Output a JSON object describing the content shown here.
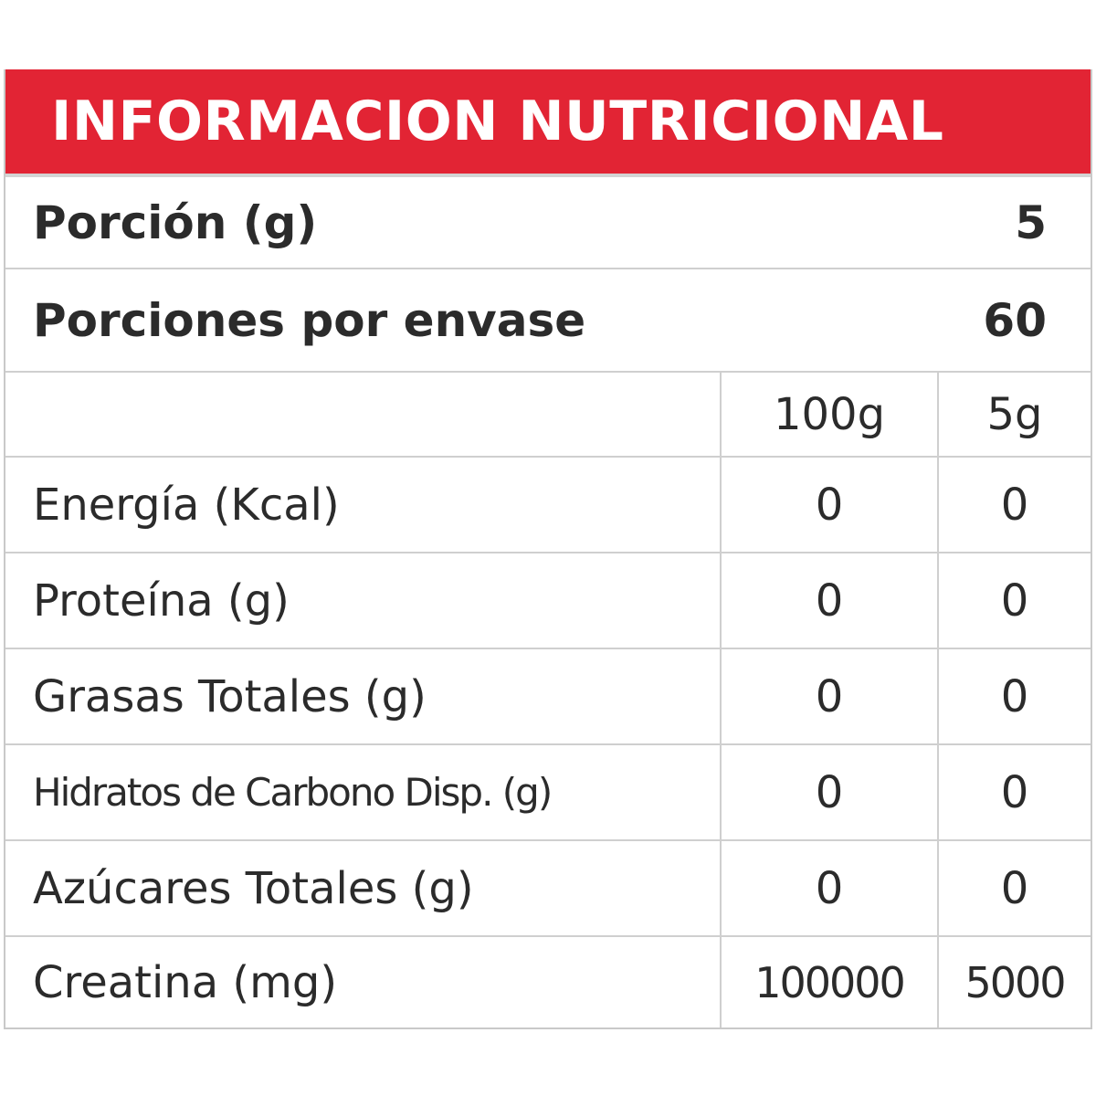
{
  "title": "INFORMACION NUTRICIONAL",
  "serving": {
    "label": "Porción (g)",
    "value": "5"
  },
  "servings_per_container": {
    "label": "Porciones por envase",
    "value": "60"
  },
  "columns": {
    "per_100": "100g",
    "per_serving": "5g"
  },
  "nutrients": [
    {
      "name": "Energía (Kcal)",
      "per_100": "0",
      "per_serving": "0"
    },
    {
      "name": "Proteína (g)",
      "per_100": "0",
      "per_serving": "0"
    },
    {
      "name": "Grasas Totales (g)",
      "per_100": "0",
      "per_serving": "0"
    },
    {
      "name": "Hidratos de Carbono Disp. (g)",
      "per_100": "0",
      "per_serving": "0"
    },
    {
      "name": "Azúcares Totales (g)",
      "per_100": "0",
      "per_serving": "0"
    },
    {
      "name": "Creatina (mg)",
      "per_100": "100000",
      "per_serving": "5000"
    }
  ],
  "colors": {
    "header": "#e22434",
    "text": "#2b2b2b",
    "border": "#cfcfcf"
  }
}
